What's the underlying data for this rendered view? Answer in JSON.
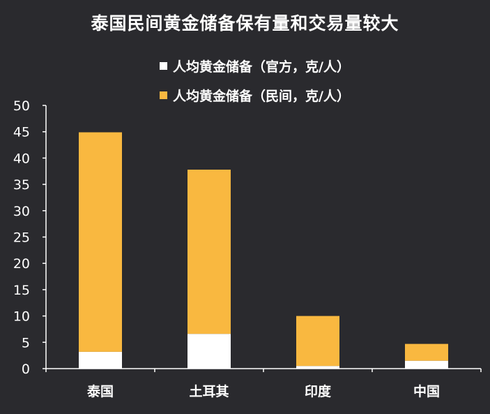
{
  "chart_data": {
    "type": "bar",
    "stacked": true,
    "title": "泰国民间黄金储备保有量和交易量较大",
    "categories": [
      "泰国",
      "土耳其",
      "印度",
      "中国"
    ],
    "series": [
      {
        "name": "人均黄金储备（官方，克/人）",
        "color": "#ffffff",
        "values": [
          3.2,
          6.6,
          0.5,
          1.5
        ]
      },
      {
        "name": "人均黄金储备（民间，克/人）",
        "color": "#f9b840",
        "values": [
          41.7,
          31.2,
          9.5,
          3.2
        ]
      }
    ],
    "yticks": [
      "0",
      "5",
      "10",
      "15",
      "20",
      "25",
      "30",
      "35",
      "40",
      "45",
      "50"
    ],
    "ylim": [
      0,
      50
    ],
    "legend_position": "top"
  }
}
